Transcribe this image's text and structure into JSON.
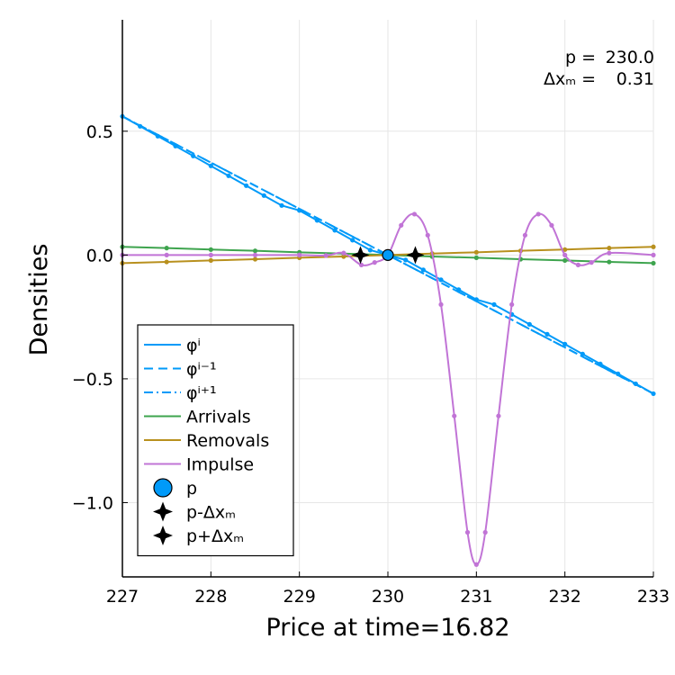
{
  "chart_data": {
    "type": "line",
    "xlabel": "Price at time=16.82",
    "ylabel": "Densities",
    "xlim": [
      227,
      233
    ],
    "ylim": [
      -1.3,
      0.95
    ],
    "grid": true,
    "legend_position": "bottom-left",
    "x_ticks": [
      {
        "value": 227,
        "label": "227"
      },
      {
        "value": 228,
        "label": "228"
      },
      {
        "value": 229,
        "label": "229"
      },
      {
        "value": 230,
        "label": "230"
      },
      {
        "value": 231,
        "label": "231"
      },
      {
        "value": 232,
        "label": "232"
      },
      {
        "value": 233,
        "label": "233"
      }
    ],
    "y_ticks": [
      {
        "value": 0.5,
        "label": "0.5"
      },
      {
        "value": 0.0,
        "label": "0.0"
      },
      {
        "value": -0.5,
        "label": "−0.5"
      },
      {
        "value": -1.0,
        "label": "−1.0"
      }
    ],
    "annotation_lines": [
      {
        "label": "p   = ",
        "value": "230.0"
      },
      {
        "label": "Δxₘ = ",
        "value": "  0.31"
      }
    ],
    "series": [
      {
        "name": "φⁱ",
        "style": "solid",
        "color": "#009af9",
        "x": [
          227.0,
          227.2,
          227.4,
          227.6,
          227.8,
          228.0,
          228.2,
          228.4,
          228.6,
          228.8,
          229.0,
          229.2,
          229.4,
          229.6,
          229.8,
          230.0,
          230.2,
          230.4,
          230.6,
          230.8,
          231.0,
          231.2,
          231.4,
          231.6,
          231.8,
          232.0,
          232.2,
          232.4,
          232.6,
          232.8,
          233.0
        ],
        "y": [
          0.56,
          0.52,
          0.48,
          0.44,
          0.4,
          0.36,
          0.32,
          0.28,
          0.24,
          0.2,
          0.18,
          0.14,
          0.1,
          0.06,
          0.02,
          0.0,
          -0.02,
          -0.06,
          -0.1,
          -0.14,
          -0.18,
          -0.2,
          -0.24,
          -0.28,
          -0.32,
          -0.36,
          -0.4,
          -0.44,
          -0.48,
          -0.52,
          -0.56
        ]
      },
      {
        "name": "φⁱ⁻¹",
        "style": "dashed",
        "color": "#009af9",
        "x": [
          227.0,
          233.0
        ],
        "y": [
          0.56,
          -0.56
        ]
      },
      {
        "name": "φⁱ⁺¹",
        "style": "dashdot",
        "color": "#009af9",
        "x": [
          227.0,
          233.0
        ],
        "y": [
          0.56,
          -0.56
        ]
      },
      {
        "name": "Arrivals",
        "style": "solid",
        "color": "#3ea44e",
        "x": [
          227.0,
          227.5,
          228.0,
          228.5,
          229.0,
          229.5,
          230.0,
          230.5,
          231.0,
          231.5,
          232.0,
          232.5,
          233.0
        ],
        "y": [
          0.033,
          0.028,
          0.022,
          0.017,
          0.011,
          0.006,
          0.0,
          -0.006,
          -0.011,
          -0.017,
          -0.022,
          -0.028,
          -0.033
        ]
      },
      {
        "name": "Removals",
        "style": "solid",
        "color": "#b8901e",
        "x": [
          227.0,
          227.5,
          228.0,
          228.5,
          229.0,
          229.5,
          230.0,
          230.5,
          231.0,
          231.5,
          232.0,
          232.5,
          233.0
        ],
        "y": [
          -0.033,
          -0.028,
          -0.022,
          -0.017,
          -0.011,
          -0.006,
          0.0,
          0.006,
          0.011,
          0.017,
          0.022,
          0.028,
          0.033
        ]
      },
      {
        "name": "Impulse",
        "style": "solid",
        "color": "#c174d6",
        "x": [
          227.0,
          227.5,
          228.0,
          228.5,
          229.0,
          229.3,
          229.5,
          229.7,
          229.85,
          230.0,
          230.15,
          230.3,
          230.45,
          230.6,
          230.75,
          230.9,
          231.0,
          231.1,
          231.25,
          231.4,
          231.55,
          231.7,
          231.85,
          232.0,
          232.15,
          232.3,
          232.5,
          233.0
        ],
        "y": [
          0.0,
          0.0,
          0.0,
          0.0,
          0.0,
          -0.002,
          0.008,
          -0.04,
          -0.03,
          0.0,
          0.12,
          0.165,
          0.08,
          -0.2,
          -0.65,
          -1.12,
          -1.25,
          -1.12,
          -0.65,
          -0.2,
          0.08,
          0.165,
          0.12,
          0.0,
          -0.04,
          -0.03,
          0.008,
          0.0
        ]
      }
    ],
    "markers": [
      {
        "name": "p",
        "x": 230.0,
        "y": 0.0,
        "shape": "circle",
        "color": "#009af9"
      },
      {
        "name": "p-Δxₘ",
        "x": 229.69,
        "y": 0.0,
        "shape": "star4",
        "color": "#000000"
      },
      {
        "name": "p+Δxₘ",
        "x": 230.31,
        "y": 0.0,
        "shape": "star4",
        "color": "#000000"
      }
    ]
  }
}
